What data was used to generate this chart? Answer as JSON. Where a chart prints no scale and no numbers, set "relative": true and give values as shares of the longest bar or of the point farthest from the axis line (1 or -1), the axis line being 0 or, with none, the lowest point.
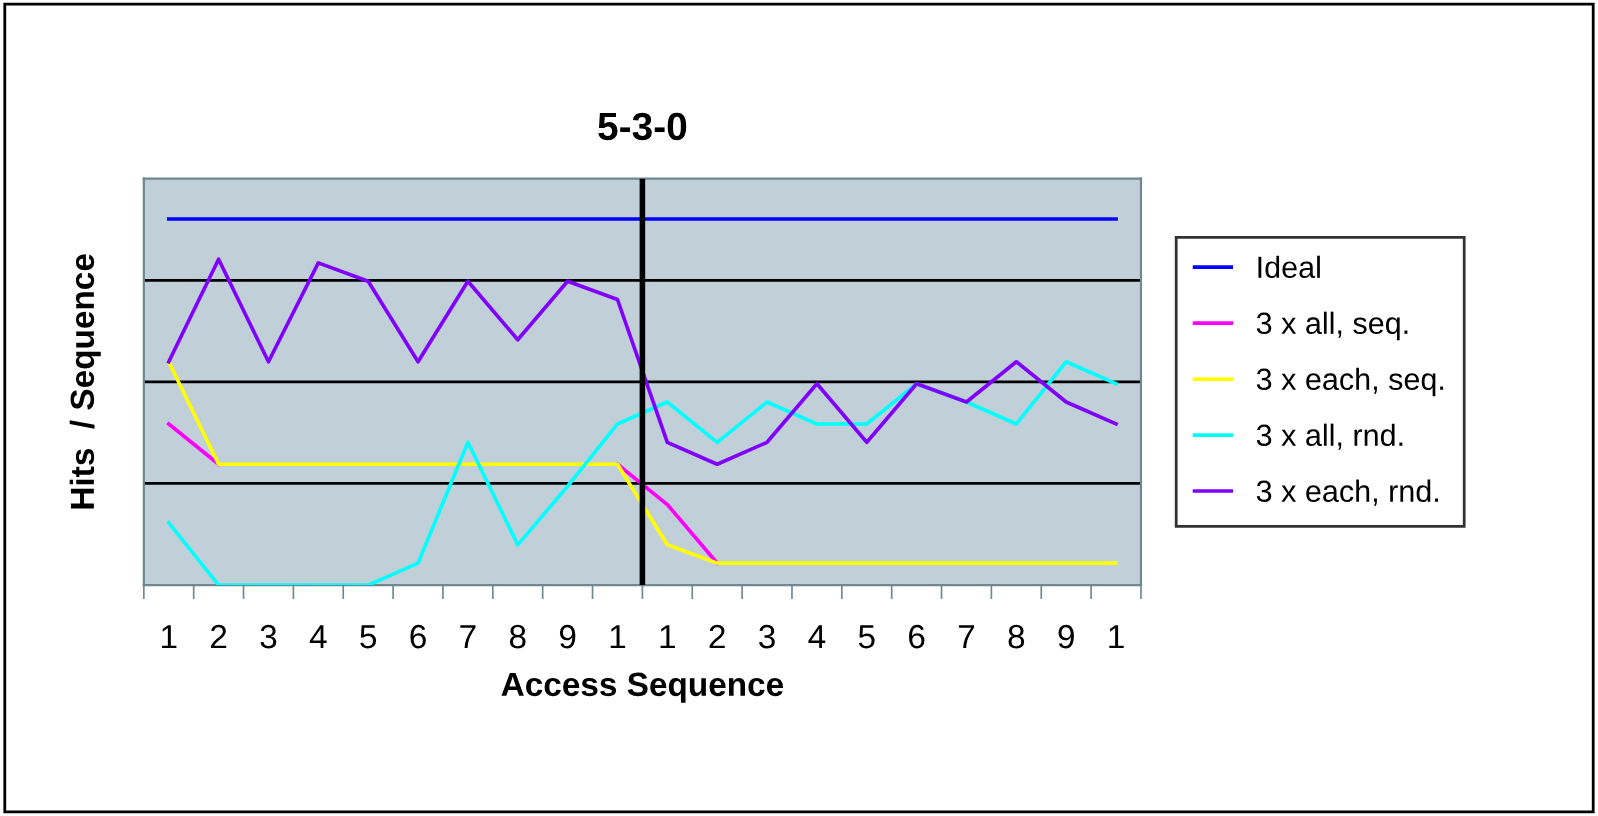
{
  "chart_data": {
    "type": "line",
    "title": "5-3-0",
    "xlabel": "Access Sequence",
    "ylabel": "Hits  / Sequence",
    "relative": true,
    "grid": "y",
    "legend": "right",
    "marker": "none",
    "line_style": "solid",
    "categories": [
      "1",
      "2",
      "3",
      "4",
      "5",
      "6",
      "7",
      "8",
      "9",
      "1",
      "1",
      "2",
      "3",
      "4",
      "5",
      "6",
      "7",
      "8",
      "9",
      "1"
    ],
    "series": [
      {
        "name": "Ideal",
        "color": "#0000ff",
        "values": [
          1,
          1,
          1,
          1,
          1,
          1,
          1,
          1,
          1,
          1,
          1,
          1,
          1,
          1,
          1,
          1,
          1,
          1,
          1,
          1
        ]
      },
      {
        "name": "3 x all, seq.",
        "color": "#ff00ff",
        "values": [
          0.44,
          0.33,
          null,
          null,
          null,
          null,
          null,
          null,
          null,
          0.33,
          0.22,
          0.06,
          null,
          null,
          null,
          null,
          null,
          null,
          null,
          null
        ]
      },
      {
        "name": "3 x each, seq.",
        "color": "#ffff00",
        "values": [
          0.61,
          0.33,
          0.33,
          0.33,
          0.33,
          0.33,
          0.33,
          0.33,
          0.33,
          0.33,
          0.11,
          0.06,
          0.06,
          0.06,
          0.06,
          0.06,
          0.06,
          0.06,
          0.06,
          0.06
        ]
      },
      {
        "name": "3 x all, rnd.",
        "color": "#00ffff",
        "values": [
          0.17,
          0,
          0,
          0,
          0,
          0.06,
          0.39,
          0.11,
          0.27,
          0.44,
          0.5,
          0.39,
          0.5,
          0.44,
          0.44,
          0.55,
          0.5,
          0.44,
          0.61,
          0.55
        ]
      },
      {
        "name": "3 x each, rnd.",
        "color": "#8000ff",
        "values": [
          0.61,
          0.89,
          0.61,
          0.88,
          0.83,
          0.61,
          0.83,
          0.67,
          0.83,
          0.78,
          0.39,
          0.33,
          0.39,
          0.55,
          0.39,
          0.55,
          0.5,
          0.61,
          0.5,
          0.44
        ]
      }
    ]
  }
}
